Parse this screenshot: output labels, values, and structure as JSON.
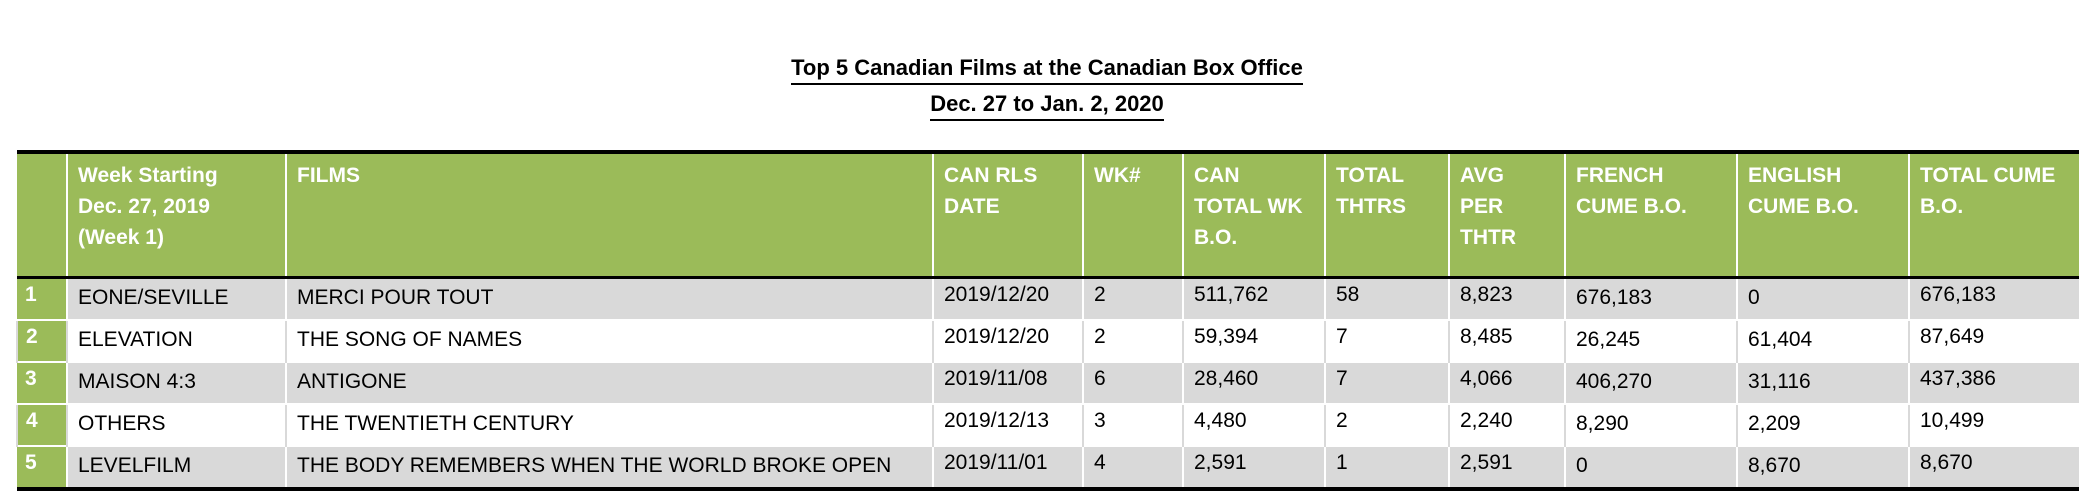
{
  "title": "Top 5 Canadian Films at the Canadian Box Office",
  "subtitle": "Dec. 27 to Jan. 2, 2020",
  "columns": {
    "rank": "",
    "week_line1": "Week Starting",
    "week_line2": "Dec. 27, 2019",
    "week_line3": "(Week 1)",
    "films": "FILMS",
    "rls_line1": "CAN RLS",
    "rls_line2": "DATE",
    "wk": "WK#",
    "canwk_line1": "CAN",
    "canwk_line2": "TOTAL WK",
    "canwk_line3": "B.O.",
    "thtrs_line1": "TOTAL",
    "thtrs_line2": "THTRS",
    "avg_line1": "AVG",
    "avg_line2": "PER",
    "avg_line3": "THTR",
    "french_line1": "FRENCH",
    "french_line2": "CUME B.O.",
    "english_line1": "ENGLISH",
    "english_line2": "CUME B.O.",
    "total_line1": "TOTAL CUME",
    "total_line2": "B.O."
  },
  "rows": [
    {
      "rank": "1",
      "distributor": "EONE/SEVILLE",
      "film": "MERCI POUR TOUT",
      "rls_date": "2019/12/20",
      "wk": "2",
      "can_wk_bo": "511,762",
      "thtrs": "58",
      "avg": "8,823",
      "french": "676,183",
      "english": "0",
      "total": "676,183"
    },
    {
      "rank": "2",
      "distributor": "ELEVATION",
      "film": "THE SONG OF NAMES",
      "rls_date": "2019/12/20",
      "wk": "2",
      "can_wk_bo": "59,394",
      "thtrs": "7",
      "avg": "8,485",
      "french": "26,245",
      "english": "61,404",
      "total": "87,649"
    },
    {
      "rank": "3",
      "distributor": "MAISON 4:3",
      "film": "ANTIGONE",
      "rls_date": "2019/11/08",
      "wk": "6",
      "can_wk_bo": "28,460",
      "thtrs": "7",
      "avg": "4,066",
      "french": "406,270",
      "english": "31,116",
      "total": "437,386"
    },
    {
      "rank": "4",
      "distributor": "OTHERS",
      "film": "THE TWENTIETH CENTURY",
      "rls_date": "2019/12/13",
      "wk": "3",
      "can_wk_bo": "4,480",
      "thtrs": "2",
      "avg": "2,240",
      "french": "8,290",
      "english": "2,209",
      "total": "10,499"
    },
    {
      "rank": "5",
      "distributor": "LEVELFILM",
      "film": "THE BODY REMEMBERS WHEN THE WORLD BROKE OPEN",
      "rls_date": "2019/11/01",
      "wk": "4",
      "can_wk_bo": "2,591",
      "thtrs": "1",
      "avg": "2,591",
      "french": "0",
      "english": "8,670",
      "total": "8,670"
    }
  ]
}
